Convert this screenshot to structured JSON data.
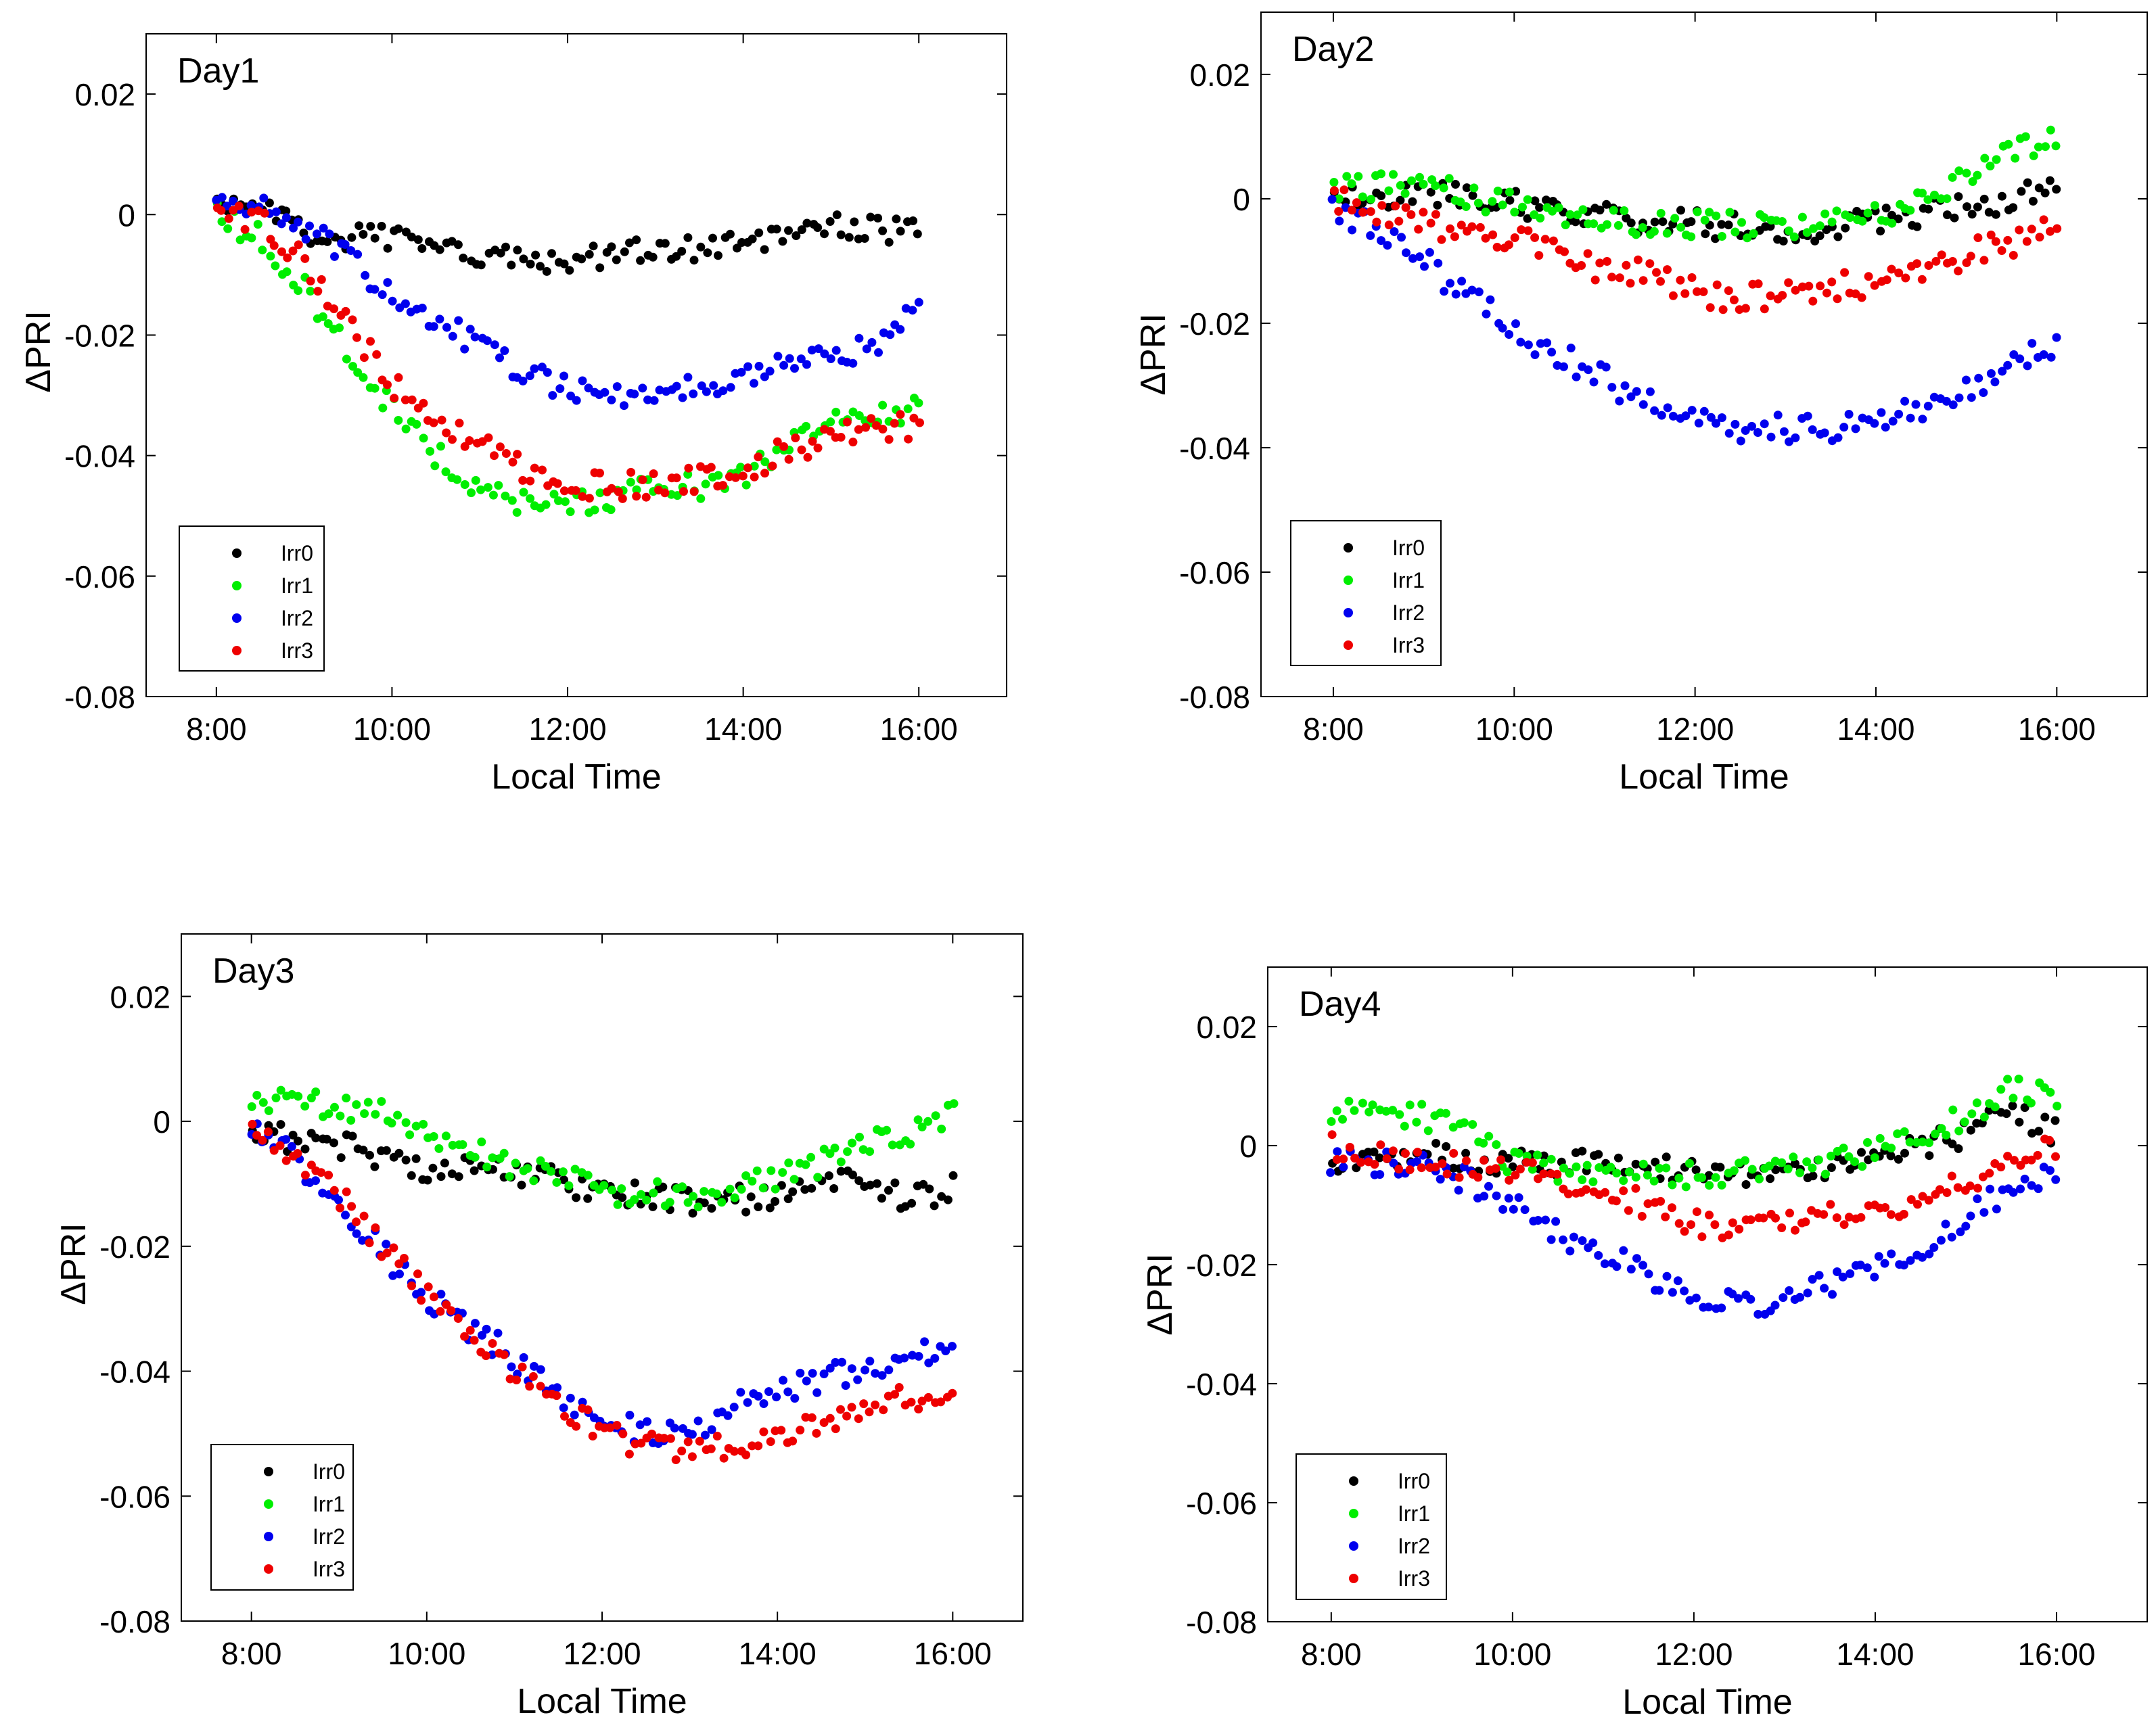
{
  "chart_data": [
    {
      "type": "scatter",
      "title": "Day1",
      "xlabel": "Local Time",
      "ylabel": "ΔPRI",
      "xlim": [
        7.2,
        17.0
      ],
      "ylim": [
        -0.08,
        0.03
      ],
      "xticks": [
        8,
        10,
        12,
        14,
        16
      ],
      "xtick_labels": [
        "8:00",
        "10:00",
        "12:00",
        "14:00",
        "16:00"
      ],
      "yticks": [
        0.02,
        0,
        -0.02,
        -0.04,
        -0.06,
        -0.08
      ],
      "ytick_labels": [
        "0.02",
        "0",
        "-0.02",
        "-0.04",
        "-0.06",
        "-0.08"
      ],
      "legend_position": "bottom-left",
      "series": [
        {
          "name": "Irr0",
          "color": "#000000",
          "profile": [
            [
              8,
              0.001
            ],
            [
              8.5,
              0.001
            ],
            [
              9,
              -0.003
            ],
            [
              10,
              -0.004
            ],
            [
              11,
              -0.007
            ],
            [
              12,
              -0.008
            ],
            [
              13,
              -0.006
            ],
            [
              14,
              -0.005
            ],
            [
              15,
              -0.002
            ],
            [
              16,
              -0.003
            ]
          ]
        },
        {
          "name": "Irr1",
          "color": "#00ee00",
          "profile": [
            [
              8,
              0.0
            ],
            [
              8.5,
              -0.004
            ],
            [
              9,
              -0.012
            ],
            [
              9.5,
              -0.023
            ],
            [
              10,
              -0.032
            ],
            [
              10.5,
              -0.04
            ],
            [
              11,
              -0.045
            ],
            [
              11.5,
              -0.048
            ],
            [
              12,
              -0.048
            ],
            [
              12.5,
              -0.047
            ],
            [
              13,
              -0.045
            ],
            [
              13.5,
              -0.045
            ],
            [
              14,
              -0.043
            ],
            [
              14.5,
              -0.039
            ],
            [
              15,
              -0.035
            ],
            [
              15.5,
              -0.033
            ],
            [
              16,
              -0.032
            ]
          ]
        },
        {
          "name": "Irr2",
          "color": "#0000ee",
          "profile": [
            [
              8,
              0.001
            ],
            [
              8.5,
              0.002
            ],
            [
              9,
              -0.002
            ],
            [
              9.5,
              -0.007
            ],
            [
              10,
              -0.014
            ],
            [
              10.5,
              -0.017
            ],
            [
              11,
              -0.022
            ],
            [
              11.5,
              -0.026
            ],
            [
              12,
              -0.029
            ],
            [
              13,
              -0.03
            ],
            [
              13.5,
              -0.029
            ],
            [
              14,
              -0.027
            ],
            [
              14.5,
              -0.025
            ],
            [
              15,
              -0.023
            ],
            [
              15.5,
              -0.022
            ],
            [
              16,
              -0.016
            ]
          ]
        },
        {
          "name": "Irr3",
          "color": "#ee0000",
          "profile": [
            [
              8,
              0.0
            ],
            [
              8.5,
              -0.001
            ],
            [
              9,
              -0.008
            ],
            [
              9.5,
              -0.018
            ],
            [
              10,
              -0.028
            ],
            [
              10.5,
              -0.034
            ],
            [
              11,
              -0.038
            ],
            [
              11.5,
              -0.042
            ],
            [
              12,
              -0.045
            ],
            [
              12.5,
              -0.045
            ],
            [
              13,
              -0.045
            ],
            [
              13.5,
              -0.044
            ],
            [
              14,
              -0.043
            ],
            [
              14.5,
              -0.039
            ],
            [
              15,
              -0.037
            ],
            [
              15.5,
              -0.036
            ],
            [
              16,
              -0.035
            ]
          ]
        }
      ]
    },
    {
      "type": "scatter",
      "title": "Day2",
      "xlabel": "Local Time",
      "ylabel": "ΔPRI",
      "xlim": [
        7.2,
        17.0
      ],
      "ylim": [
        -0.08,
        0.03
      ],
      "xticks": [
        8,
        10,
        12,
        14,
        16
      ],
      "xtick_labels": [
        "8:00",
        "10:00",
        "12:00",
        "14:00",
        "16:00"
      ],
      "yticks": [
        0.02,
        0,
        -0.02,
        -0.04,
        -0.06,
        -0.08
      ],
      "ytick_labels": [
        "0.02",
        "0",
        "-0.02",
        "-0.04",
        "-0.06",
        "-0.08"
      ],
      "legend_position": "bottom-left",
      "series": [
        {
          "name": "Irr0",
          "color": "#000000",
          "profile": [
            [
              8,
              0.0
            ],
            [
              9,
              0.001
            ],
            [
              10,
              -0.001
            ],
            [
              11,
              -0.003
            ],
            [
              12,
              -0.004
            ],
            [
              13,
              -0.005
            ],
            [
              14,
              -0.004
            ],
            [
              15,
              -0.001
            ],
            [
              16,
              0.001
            ]
          ]
        },
        {
          "name": "Irr1",
          "color": "#00ee00",
          "profile": [
            [
              8,
              0.002
            ],
            [
              9,
              0.002
            ],
            [
              10,
              -0.001
            ],
            [
              11,
              -0.004
            ],
            [
              12,
              -0.004
            ],
            [
              13,
              -0.005
            ],
            [
              14,
              -0.003
            ],
            [
              14.5,
              0.0
            ],
            [
              15,
              0.004
            ],
            [
              15.5,
              0.008
            ],
            [
              16,
              0.01
            ]
          ]
        },
        {
          "name": "Irr2",
          "color": "#0000ee",
          "profile": [
            [
              8,
              -0.002
            ],
            [
              8.5,
              -0.005
            ],
            [
              9,
              -0.01
            ],
            [
              9.5,
              -0.016
            ],
            [
              10,
              -0.021
            ],
            [
              10.5,
              -0.025
            ],
            [
              11,
              -0.029
            ],
            [
              11.5,
              -0.033
            ],
            [
              12,
              -0.035
            ],
            [
              12.5,
              -0.037
            ],
            [
              13,
              -0.037
            ],
            [
              13.5,
              -0.037
            ],
            [
              14,
              -0.036
            ],
            [
              14.5,
              -0.034
            ],
            [
              15,
              -0.031
            ],
            [
              15.5,
              -0.027
            ],
            [
              16,
              -0.023
            ]
          ]
        },
        {
          "name": "Irr3",
          "color": "#ee0000",
          "profile": [
            [
              8,
              0.0
            ],
            [
              8.5,
              -0.003
            ],
            [
              9,
              -0.004
            ],
            [
              10,
              -0.006
            ],
            [
              10.5,
              -0.008
            ],
            [
              11,
              -0.012
            ],
            [
              11.5,
              -0.012
            ],
            [
              12,
              -0.015
            ],
            [
              12.5,
              -0.016
            ],
            [
              13,
              -0.015
            ],
            [
              13.5,
              -0.014
            ],
            [
              14,
              -0.014
            ],
            [
              14.5,
              -0.012
            ],
            [
              15,
              -0.009
            ],
            [
              15.5,
              -0.007
            ],
            [
              16,
              -0.003
            ]
          ]
        }
      ]
    },
    {
      "type": "scatter",
      "title": "Day3",
      "xlabel": "Local Time",
      "ylabel": "ΔPRI",
      "xlim": [
        7.2,
        16.8
      ],
      "ylim": [
        -0.08,
        0.03
      ],
      "xticks": [
        8,
        10,
        12,
        14,
        16
      ],
      "xtick_labels": [
        "8:00",
        "10:00",
        "12:00",
        "14:00",
        "16:00"
      ],
      "yticks": [
        0.02,
        0,
        -0.02,
        -0.04,
        -0.06,
        -0.08
      ],
      "ytick_labels": [
        "0.02",
        "0",
        "-0.02",
        "-0.04",
        "-0.06",
        "-0.08"
      ],
      "legend_position": "bottom-left",
      "series": [
        {
          "name": "Irr0",
          "color": "#000000",
          "profile": [
            [
              8,
              -0.002
            ],
            [
              9,
              -0.004
            ],
            [
              10,
              -0.008
            ],
            [
              11,
              -0.008
            ],
            [
              12,
              -0.011
            ],
            [
              13,
              -0.013
            ],
            [
              14,
              -0.012
            ],
            [
              15,
              -0.009
            ],
            [
              15.5,
              -0.013
            ],
            [
              16,
              -0.01
            ]
          ]
        },
        {
          "name": "Irr1",
          "color": "#00ee00",
          "profile": [
            [
              8,
              0.003
            ],
            [
              8.5,
              0.003
            ],
            [
              9,
              0.002
            ],
            [
              9.5,
              0.001
            ],
            [
              10,
              -0.003
            ],
            [
              11,
              -0.007
            ],
            [
              12,
              -0.011
            ],
            [
              13,
              -0.012
            ],
            [
              14,
              -0.009
            ],
            [
              15,
              -0.004
            ],
            [
              15.5,
              -0.002
            ],
            [
              16,
              0.002
            ]
          ]
        },
        {
          "name": "Irr2",
          "color": "#0000ee",
          "profile": [
            [
              8,
              0.0
            ],
            [
              8.5,
              -0.006
            ],
            [
              9,
              -0.013
            ],
            [
              9.5,
              -0.021
            ],
            [
              10,
              -0.028
            ],
            [
              10.5,
              -0.033
            ],
            [
              11,
              -0.038
            ],
            [
              11.5,
              -0.044
            ],
            [
              12,
              -0.048
            ],
            [
              12.5,
              -0.05
            ],
            [
              13,
              -0.05
            ],
            [
              13.5,
              -0.046
            ],
            [
              14,
              -0.043
            ],
            [
              14.5,
              -0.041
            ],
            [
              15,
              -0.04
            ],
            [
              15.5,
              -0.038
            ],
            [
              16,
              -0.036
            ]
          ]
        },
        {
          "name": "Irr3",
          "color": "#ee0000",
          "profile": [
            [
              8,
              -0.002
            ],
            [
              8.5,
              -0.007
            ],
            [
              9,
              -0.012
            ],
            [
              9.5,
              -0.02
            ],
            [
              10,
              -0.028
            ],
            [
              10.5,
              -0.034
            ],
            [
              11,
              -0.04
            ],
            [
              11.5,
              -0.045
            ],
            [
              12,
              -0.05
            ],
            [
              12.5,
              -0.052
            ],
            [
              13,
              -0.053
            ],
            [
              13.5,
              -0.052
            ],
            [
              14,
              -0.05
            ],
            [
              14.5,
              -0.048
            ],
            [
              15,
              -0.046
            ],
            [
              15.5,
              -0.044
            ],
            [
              16,
              -0.044
            ]
          ]
        }
      ]
    },
    {
      "type": "scatter",
      "title": "Day4",
      "xlabel": "Local Time",
      "ylabel": "ΔPRI",
      "xlim": [
        7.3,
        17.0
      ],
      "ylim": [
        -0.08,
        0.03
      ],
      "xticks": [
        8,
        10,
        12,
        14,
        16
      ],
      "xtick_labels": [
        "8:00",
        "10:00",
        "12:00",
        "14:00",
        "16:00"
      ],
      "yticks": [
        0.02,
        0,
        -0.02,
        -0.04,
        -0.06,
        -0.08
      ],
      "ytick_labels": [
        "0.02",
        "0",
        "-0.02",
        "-0.04",
        "-0.06",
        "-0.08"
      ],
      "legend_position": "bottom-left",
      "series": [
        {
          "name": "Irr0",
          "color": "#000000",
          "profile": [
            [
              8,
              -0.003
            ],
            [
              9,
              -0.001
            ],
            [
              10,
              -0.003
            ],
            [
              11,
              -0.003
            ],
            [
              12,
              -0.004
            ],
            [
              13,
              -0.005
            ],
            [
              14,
              -0.002
            ],
            [
              15,
              0.002
            ],
            [
              15.5,
              0.006
            ],
            [
              16,
              0.002
            ]
          ]
        },
        {
          "name": "Irr1",
          "color": "#00ee00",
          "profile": [
            [
              8,
              0.006
            ],
            [
              8.5,
              0.006
            ],
            [
              9,
              0.005
            ],
            [
              9.5,
              0.002
            ],
            [
              10,
              -0.003
            ],
            [
              11,
              -0.005
            ],
            [
              12,
              -0.005
            ],
            [
              13,
              -0.004
            ],
            [
              14,
              -0.001
            ],
            [
              15,
              0.005
            ],
            [
              15.5,
              0.01
            ],
            [
              16,
              0.008
            ]
          ]
        },
        {
          "name": "Irr2",
          "color": "#0000ee",
          "profile": [
            [
              8,
              -0.003
            ],
            [
              8.5,
              -0.003
            ],
            [
              9,
              -0.003
            ],
            [
              9.5,
              -0.006
            ],
            [
              10,
              -0.01
            ],
            [
              10.5,
              -0.015
            ],
            [
              11,
              -0.018
            ],
            [
              11.5,
              -0.022
            ],
            [
              12,
              -0.025
            ],
            [
              12.5,
              -0.027
            ],
            [
              13,
              -0.026
            ],
            [
              13.5,
              -0.023
            ],
            [
              14,
              -0.02
            ],
            [
              14.5,
              -0.017
            ],
            [
              15,
              -0.012
            ],
            [
              15.5,
              -0.007
            ],
            [
              16,
              -0.005
            ]
          ]
        },
        {
          "name": "Irr3",
          "color": "#ee0000",
          "profile": [
            [
              8,
              0.0
            ],
            [
              8.5,
              -0.002
            ],
            [
              9,
              -0.003
            ],
            [
              10,
              -0.004
            ],
            [
              10.5,
              -0.006
            ],
            [
              11,
              -0.008
            ],
            [
              11.5,
              -0.01
            ],
            [
              12,
              -0.013
            ],
            [
              12.5,
              -0.014
            ],
            [
              13,
              -0.013
            ],
            [
              13.5,
              -0.012
            ],
            [
              14,
              -0.011
            ],
            [
              14.5,
              -0.009
            ],
            [
              15,
              -0.006
            ],
            [
              15.5,
              -0.003
            ],
            [
              16,
              0.0
            ]
          ]
        }
      ]
    }
  ]
}
